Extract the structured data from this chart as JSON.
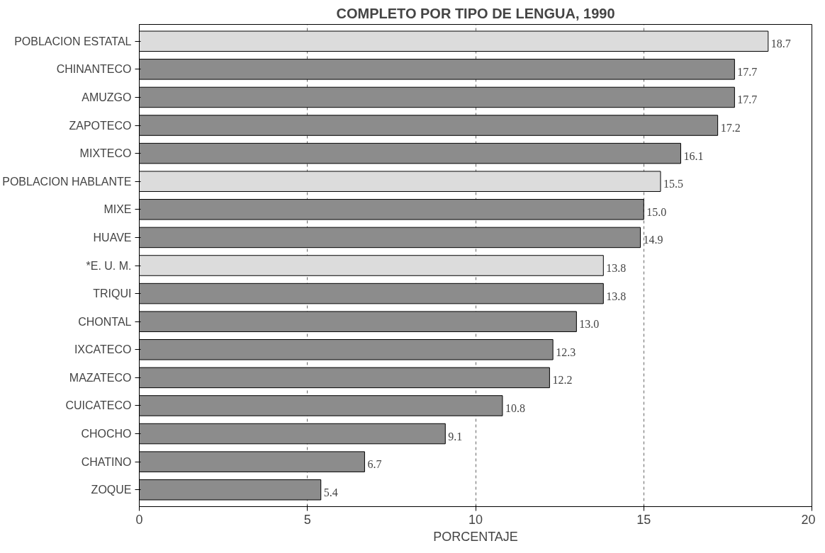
{
  "chart_data": {
    "type": "bar",
    "orientation": "horizontal",
    "title": "COMPLETO POR TIPO DE LENGUA, 1990",
    "xlabel": "PORCENTAJE",
    "categories": [
      "POBLACION ESTATAL",
      "CHINANTECO",
      "AMUZGO",
      "ZAPOTECO",
      "MIXTECO",
      "POBLACION HABLANTE",
      "MIXE",
      "HUAVE",
      "*E. U. M.",
      "TRIQUI",
      "CHONTAL",
      "IXCATECO",
      "MAZATECO",
      "CUICATECO",
      "CHOCHO",
      "CHATINO",
      "ZOQUE"
    ],
    "values": [
      18.7,
      17.7,
      17.7,
      17.2,
      16.1,
      15.5,
      15.0,
      14.9,
      13.8,
      13.8,
      13.0,
      12.3,
      12.2,
      10.8,
      9.1,
      6.7,
      5.4
    ],
    "value_labels": [
      "18.7",
      "17.7",
      "17.7",
      "17.2",
      "16.1",
      "15.5",
      "15.0",
      "14.9",
      "13.8",
      "13.8",
      "13.0",
      "12.3",
      "12.2",
      "10.8",
      "9.1",
      "6.7",
      "5.4"
    ],
    "colors": [
      "#dcdcdc",
      "#8c8c8c",
      "#8c8c8c",
      "#8c8c8c",
      "#8c8c8c",
      "#dcdcdc",
      "#8c8c8c",
      "#8c8c8c",
      "#dcdcdc",
      "#8c8c8c",
      "#8c8c8c",
      "#8c8c8c",
      "#8c8c8c",
      "#8c8c8c",
      "#8c8c8c",
      "#8c8c8c",
      "#8c8c8c"
    ],
    "xlim": [
      0,
      20
    ],
    "xticks": [
      0,
      5,
      10,
      15,
      20
    ],
    "grid": "x"
  }
}
